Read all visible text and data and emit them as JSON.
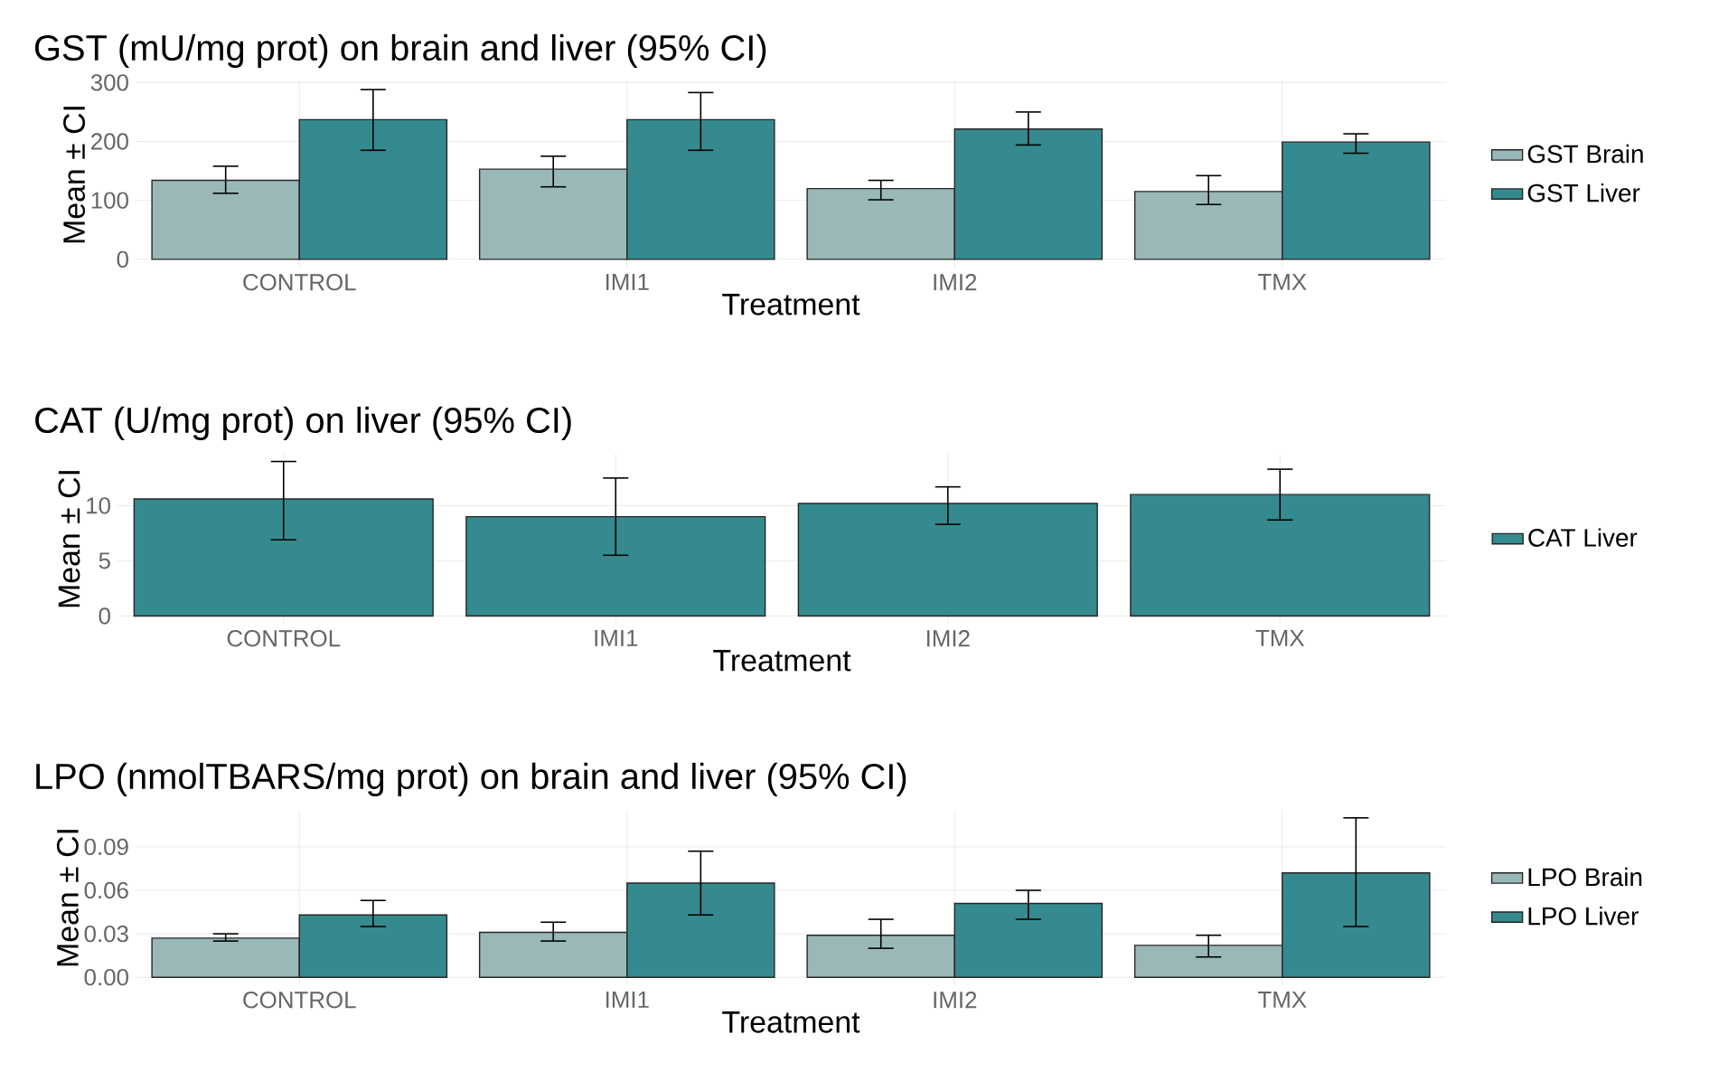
{
  "chart_data": [
    {
      "type": "bar",
      "title": "GST (mU/mg prot) on brain and liver (95% CI)",
      "xlabel": "Treatment",
      "ylabel": "Mean ± CI",
      "categories": [
        "CONTROL",
        "IMI1",
        "IMI2",
        "TMX"
      ],
      "series": [
        {
          "name": "GST Brain",
          "color": "#9ab8b8",
          "values": [
            134,
            153,
            120,
            115
          ],
          "errors": [
            [
              112,
              158
            ],
            [
              123,
              175
            ],
            [
              101,
              134
            ],
            [
              93,
              142
            ]
          ]
        },
        {
          "name": "GST Liver",
          "color": "#358a8f",
          "values": [
            237,
            237,
            221,
            199
          ],
          "errors": [
            [
              185,
              288
            ],
            [
              185,
              283
            ],
            [
              194,
              250
            ],
            [
              180,
              213
            ]
          ]
        }
      ],
      "ylim": [
        -14,
        302
      ],
      "yticks": [
        0,
        100,
        200,
        300
      ],
      "grid": true,
      "legend": "right"
    },
    {
      "type": "bar",
      "title": "CAT (U/mg prot) on liver (95% CI)",
      "xlabel": "Treatment",
      "ylabel": "Mean ± CI",
      "categories": [
        "CONTROL",
        "IMI1",
        "IMI2",
        "TMX"
      ],
      "series": [
        {
          "name": "CAT Liver",
          "color": "#358a8f",
          "values": [
            10.6,
            9.0,
            10.2,
            11.0
          ],
          "errors": [
            [
              6.9,
              14.0
            ],
            [
              5.5,
              12.5
            ],
            [
              8.3,
              11.7
            ],
            [
              8.7,
              13.3
            ]
          ]
        }
      ],
      "ylim": [
        -0.7,
        14.7
      ],
      "yticks": [
        0,
        5,
        10
      ],
      "grid": true,
      "legend": "right"
    },
    {
      "type": "bar",
      "title": "LPO (nmolTBARS/mg prot) on brain and liver (95% CI)",
      "xlabel": "Treatment",
      "ylabel": "Mean ± CI",
      "categories": [
        "CONTROL",
        "IMI1",
        "IMI2",
        "TMX"
      ],
      "series": [
        {
          "name": "LPO Brain",
          "color": "#9ab8b8",
          "values": [
            0.027,
            0.031,
            0.029,
            0.022
          ],
          "errors": [
            [
              0.025,
              0.03
            ],
            [
              0.025,
              0.038
            ],
            [
              0.02,
              0.04
            ],
            [
              0.014,
              0.029
            ]
          ]
        },
        {
          "name": "LPO Liver",
          "color": "#358a8f",
          "values": [
            0.043,
            0.065,
            0.051,
            0.072
          ],
          "errors": [
            [
              0.035,
              0.053
            ],
            [
              0.043,
              0.087
            ],
            [
              0.04,
              0.06
            ],
            [
              0.035,
              0.11
            ]
          ]
        }
      ],
      "ylim": [
        -0.0055,
        0.1155
      ],
      "yticks": [
        {
          "value": 0,
          "label": "0.00"
        },
        {
          "value": 0.03,
          "label": "0.03"
        },
        {
          "value": 0.06,
          "label": "0.06"
        },
        {
          "value": 0.09,
          "label": "0.09"
        }
      ],
      "grid": true,
      "legend": "right"
    }
  ]
}
